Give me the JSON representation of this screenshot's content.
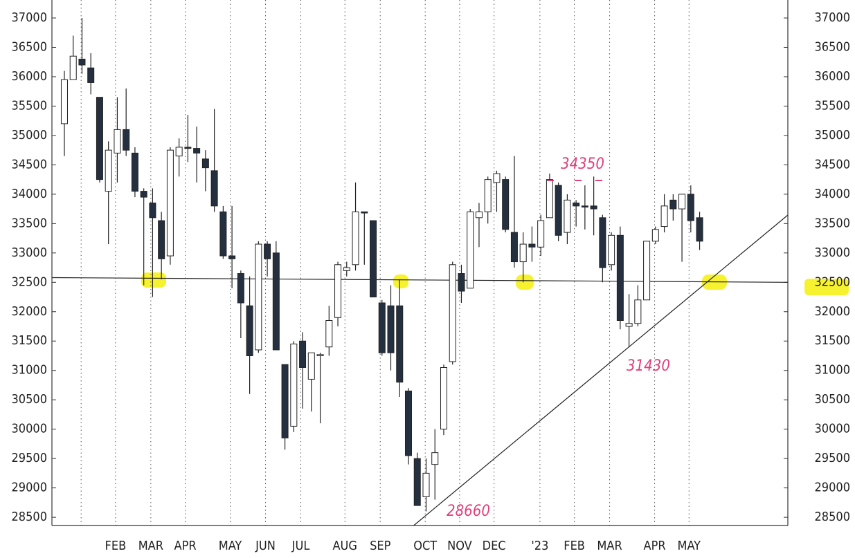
{
  "chart_data": {
    "type": "candlestick",
    "ylim": [
      28360,
      37306
    ],
    "yticks": [
      28500,
      29000,
      29500,
      30000,
      30500,
      31000,
      31500,
      32000,
      32500,
      33000,
      33500,
      34000,
      34500,
      35000,
      35500,
      36000,
      36500,
      37000
    ],
    "xlim": [
      -1.41,
      82
    ],
    "xticks": [
      {
        "value": 1.9,
        "label": null
      },
      {
        "value": 5.8,
        "label": "FEB"
      },
      {
        "value": 9.8,
        "label": "MAR"
      },
      {
        "value": 13.7,
        "label": "APR"
      },
      {
        "value": 18.8,
        "label": "MAY"
      },
      {
        "value": 22.8,
        "label": "JUN"
      },
      {
        "value": 26.8,
        "label": "JUL"
      },
      {
        "value": 31.8,
        "label": "AUG"
      },
      {
        "value": 35.8,
        "label": "SEP"
      },
      {
        "value": 40.9,
        "label": "OCT"
      },
      {
        "value": 44.8,
        "label": "NOV"
      },
      {
        "value": 48.7,
        "label": "DEC"
      },
      {
        "value": 53.9,
        "label": "'23"
      },
      {
        "value": 57.8,
        "label": "FEB"
      },
      {
        "value": 61.8,
        "label": "MAR"
      },
      {
        "value": 66.9,
        "label": "APR"
      },
      {
        "value": 70.8,
        "label": "MAY"
      }
    ],
    "open": [
      35200,
      35950,
      36300,
      36150,
      35650,
      34050,
      34700,
      35100,
      34700,
      34050,
      33850,
      33550,
      32950,
      34650,
      34800,
      34780,
      34600,
      34400,
      33700,
      32950,
      32650,
      32100,
      31350,
      33150,
      33000,
      31100,
      30050,
      31500,
      30850,
      31250,
      31400,
      31900,
      32700,
      32800,
      33700,
      33550,
      32150,
      32100,
      32100,
      30650,
      29500,
      28850,
      29400,
      30000,
      31150,
      32650,
      32400,
      33600,
      33700,
      34200,
      34250,
      33350,
      32850,
      33150,
      33100,
      33600,
      34150,
      33350,
      33850,
      33800,
      33800,
      33600,
      32800,
      33300,
      31750,
      31800,
      32200,
      33200,
      33450,
      33900,
      33750,
      34000,
      33600
    ],
    "high": [
      36100,
      36700,
      37000,
      36400,
      35650,
      34900,
      35650,
      35800,
      34800,
      34100,
      34100,
      33700,
      34800,
      34950,
      35350,
      35150,
      34750,
      35450,
      33800,
      33800,
      32700,
      32600,
      33200,
      33200,
      33200,
      31100,
      31500,
      31650,
      31300,
      31300,
      32100,
      32850,
      32850,
      34200,
      33700,
      33550,
      32200,
      32450,
      32550,
      30700,
      29600,
      29500,
      30000,
      31100,
      32850,
      32800,
      33750,
      33850,
      34300,
      34400,
      34300,
      34650,
      33350,
      33450,
      33650,
      34350,
      34200,
      34000,
      33900,
      34150,
      34300,
      33650,
      33350,
      33450,
      32300,
      32450,
      33200,
      33450,
      34000,
      34000,
      34000,
      34150,
      33700
    ],
    "low": [
      34650,
      35950,
      36050,
      35700,
      34200,
      33150,
      34200,
      34650,
      33950,
      32450,
      32250,
      32550,
      32800,
      34300,
      34550,
      34200,
      34050,
      33700,
      32900,
      32400,
      31550,
      30600,
      31300,
      32600,
      31350,
      29650,
      29950,
      30350,
      30300,
      30100,
      31250,
      31750,
      32600,
      32700,
      32800,
      32250,
      31250,
      31000,
      30550,
      29400,
      28700,
      28600,
      28800,
      29900,
      31100,
      32150,
      32400,
      33100,
      33500,
      33700,
      33350,
      32750,
      32500,
      32850,
      32950,
      33600,
      33200,
      33150,
      33450,
      33400,
      33300,
      32500,
      32700,
      31700,
      31400,
      31750,
      32200,
      33150,
      33350,
      33550,
      32850,
      33350,
      33050
    ],
    "close": [
      35950,
      36350,
      36200,
      35900,
      34250,
      34750,
      35100,
      34750,
      34050,
      33950,
      33600,
      32900,
      34750,
      34800,
      34780,
      34700,
      34450,
      33800,
      32950,
      32900,
      32150,
      31250,
      33150,
      32900,
      31350,
      29850,
      31450,
      31050,
      31300,
      31270,
      31850,
      32800,
      32750,
      33700,
      33680,
      32250,
      31300,
      31300,
      30800,
      29550,
      28700,
      29250,
      29600,
      31050,
      32800,
      32350,
      33700,
      33700,
      34250,
      34350,
      33400,
      32850,
      33150,
      33100,
      33550,
      34250,
      33300,
      33900,
      33800,
      33780,
      33750,
      32750,
      33300,
      31850,
      31800,
      32200,
      33200,
      33400,
      33800,
      33750,
      34000,
      33550,
      33200
    ],
    "up_color": "#ffffff",
    "down_color": "#243040",
    "lines": [
      {
        "x": [
          -1.41,
          82
        ],
        "y": [
          32580,
          32500
        ]
      },
      {
        "x": [
          39.6,
          82
        ],
        "y": [
          28360,
          33645
        ]
      }
    ],
    "annotations": [
      "34350",
      "31430",
      "28660"
    ]
  }
}
